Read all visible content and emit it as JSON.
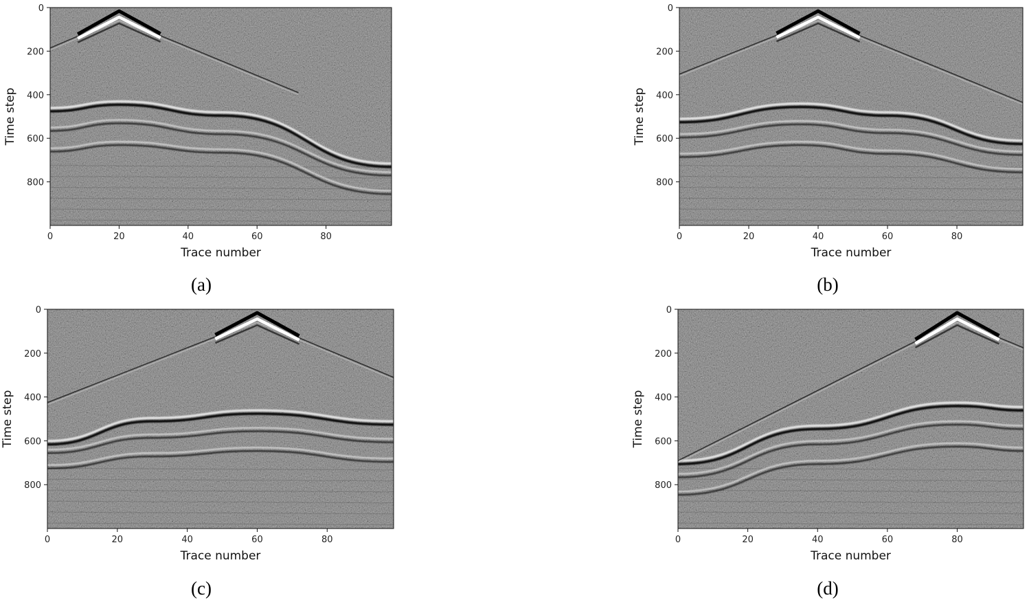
{
  "chart_data": [
    {
      "type": "heatmap",
      "caption": "(a)",
      "xlabel": "Trace number",
      "ylabel": "Time step",
      "xlim": [
        0,
        99
      ],
      "ylim": [
        1000,
        0
      ],
      "xticks": [
        0,
        20,
        40,
        60,
        80
      ],
      "yticks": [
        0,
        200,
        400,
        600,
        800
      ],
      "colormap": "gray",
      "grid": false,
      "source_trace": 20,
      "direct_wave": {
        "apex": [
          20,
          60
        ],
        "ends": [
          [
            0,
            195
          ],
          [
            72,
            400
          ]
        ]
      },
      "reflections": [
        {
          "x": [
            0,
            20,
            50,
            99
          ],
          "t": [
            470,
            440,
            490,
            725
          ]
        },
        {
          "x": [
            0,
            20,
            50,
            99
          ],
          "t": [
            560,
            525,
            575,
            765
          ]
        },
        {
          "x": [
            0,
            20,
            50,
            99
          ],
          "t": [
            655,
            625,
            660,
            850
          ]
        }
      ]
    },
    {
      "type": "heatmap",
      "caption": "(b)",
      "xlabel": "Trace number",
      "ylabel": "Time step",
      "xlim": [
        0,
        99
      ],
      "ylim": [
        1000,
        0
      ],
      "xticks": [
        0,
        20,
        40,
        60,
        80
      ],
      "yticks": [
        0,
        200,
        400,
        600,
        800
      ],
      "colormap": "gray",
      "grid": false,
      "source_trace": 40,
      "direct_wave": {
        "apex": [
          40,
          60
        ],
        "ends": [
          [
            0,
            315
          ],
          [
            99,
            445
          ]
        ]
      },
      "reflections": [
        {
          "x": [
            0,
            35,
            60,
            99
          ],
          "t": [
            520,
            450,
            490,
            620
          ]
        },
        {
          "x": [
            0,
            35,
            60,
            99
          ],
          "t": [
            590,
            530,
            570,
            670
          ]
        },
        {
          "x": [
            0,
            35,
            60,
            99
          ],
          "t": [
            680,
            625,
            665,
            750
          ]
        }
      ]
    },
    {
      "type": "heatmap",
      "caption": "(c)",
      "xlabel": "Trace number",
      "ylabel": "Time step",
      "xlim": [
        0,
        99
      ],
      "ylim": [
        1000,
        0
      ],
      "xticks": [
        0,
        20,
        40,
        60,
        80
      ],
      "yticks": [
        0,
        200,
        400,
        600,
        800
      ],
      "colormap": "gray",
      "grid": false,
      "source_trace": 60,
      "direct_wave": {
        "apex": [
          60,
          60
        ],
        "ends": [
          [
            0,
            435
          ],
          [
            99,
            320
          ]
        ]
      },
      "reflections": [
        {
          "x": [
            0,
            30,
            60,
            99
          ],
          "t": [
            610,
            505,
            470,
            520
          ]
        },
        {
          "x": [
            0,
            30,
            60,
            99
          ],
          "t": [
            650,
            580,
            550,
            600
          ]
        },
        {
          "x": [
            0,
            30,
            60,
            99
          ],
          "t": [
            720,
            665,
            640,
            690
          ]
        }
      ]
    },
    {
      "type": "heatmap",
      "caption": "(d)",
      "xlabel": "Trace number",
      "ylabel": "Time step",
      "xlim": [
        0,
        99
      ],
      "ylim": [
        1000,
        0
      ],
      "xticks": [
        0,
        20,
        40,
        60,
        80
      ],
      "yticks": [
        0,
        200,
        400,
        600,
        800
      ],
      "colormap": "gray",
      "grid": false,
      "source_trace": 80,
      "direct_wave": {
        "apex": [
          80,
          60
        ],
        "ends": [
          [
            0,
            700
          ],
          [
            99,
            185
          ]
        ]
      },
      "reflections": [
        {
          "x": [
            0,
            40,
            80,
            99
          ],
          "t": [
            700,
            540,
            435,
            455
          ]
        },
        {
          "x": [
            0,
            40,
            80,
            99
          ],
          "t": [
            760,
            610,
            520,
            540
          ]
        },
        {
          "x": [
            0,
            40,
            80,
            99
          ],
          "t": [
            840,
            700,
            620,
            640
          ]
        }
      ]
    }
  ]
}
